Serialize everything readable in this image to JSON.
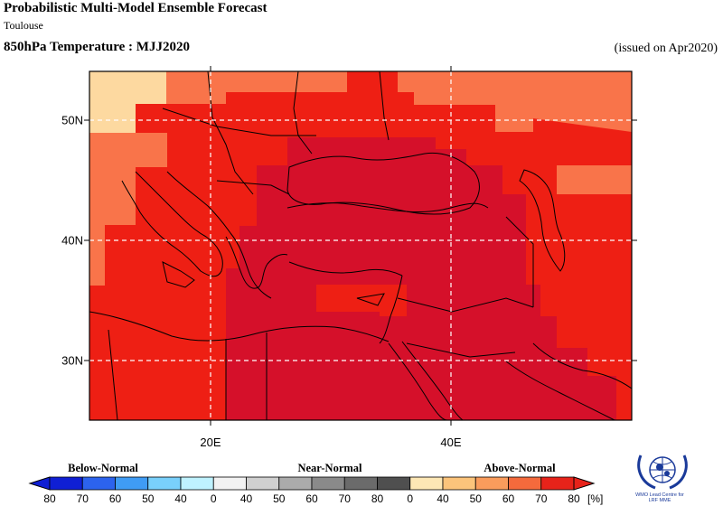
{
  "header": {
    "title": "Probabilistic Multi-Model Ensemble Forecast",
    "subtitle": "Toulouse",
    "variable": "850hPa Temperature : MJJ2020",
    "issued": "(issued on Apr2020)"
  },
  "map": {
    "lon_range": [
      10,
      55
    ],
    "lat_range": [
      25,
      55
    ],
    "lat_ticks": [
      {
        "value": 30,
        "label": "30N"
      },
      {
        "value": 40,
        "label": "40N"
      },
      {
        "value": 50,
        "label": "50N"
      }
    ],
    "lon_ticks": [
      {
        "value": 20,
        "label": "20E"
      },
      {
        "value": 40,
        "label": "40E"
      }
    ],
    "grid": true,
    "category": "above-normal",
    "zones": [
      {
        "name": "pale-50",
        "color": "#FDD9A0",
        "prob_range": [
          50,
          60
        ]
      },
      {
        "name": "orange-60-70",
        "color": "#F9744A",
        "prob_range": [
          60,
          70
        ]
      },
      {
        "name": "red-70-80",
        "color": "#EE1F14",
        "prob_range": [
          70,
          80
        ]
      },
      {
        "name": "dark-red-80",
        "color": "#D5102A",
        "prob_range": [
          80,
          100
        ]
      }
    ]
  },
  "legend": {
    "categories": [
      {
        "label": "Below-Normal"
      },
      {
        "label": "Near-Normal"
      },
      {
        "label": "Above-Normal"
      }
    ],
    "colors": [
      "#0f1fd4",
      "#2c63ee",
      "#3f9cf5",
      "#79d0fb",
      "#bff2ff",
      "#f2f2f2",
      "#d0d0d0",
      "#ababab",
      "#8a8a8a",
      "#6b6b6b",
      "#4f4f4f",
      "#fde7b5",
      "#fcc47b",
      "#fa9c5c",
      "#f46a3c",
      "#e7231a"
    ],
    "ticks": [
      "80",
      "70",
      "60",
      "50",
      "40",
      "0",
      "40",
      "50",
      "60",
      "70",
      "80",
      "0",
      "40",
      "50",
      "60",
      "70",
      "80"
    ],
    "unit": "[%]"
  },
  "logo": {
    "icon": "wmo-emblem-icon",
    "caption": "WMO Lead Centre for LRF MME"
  }
}
